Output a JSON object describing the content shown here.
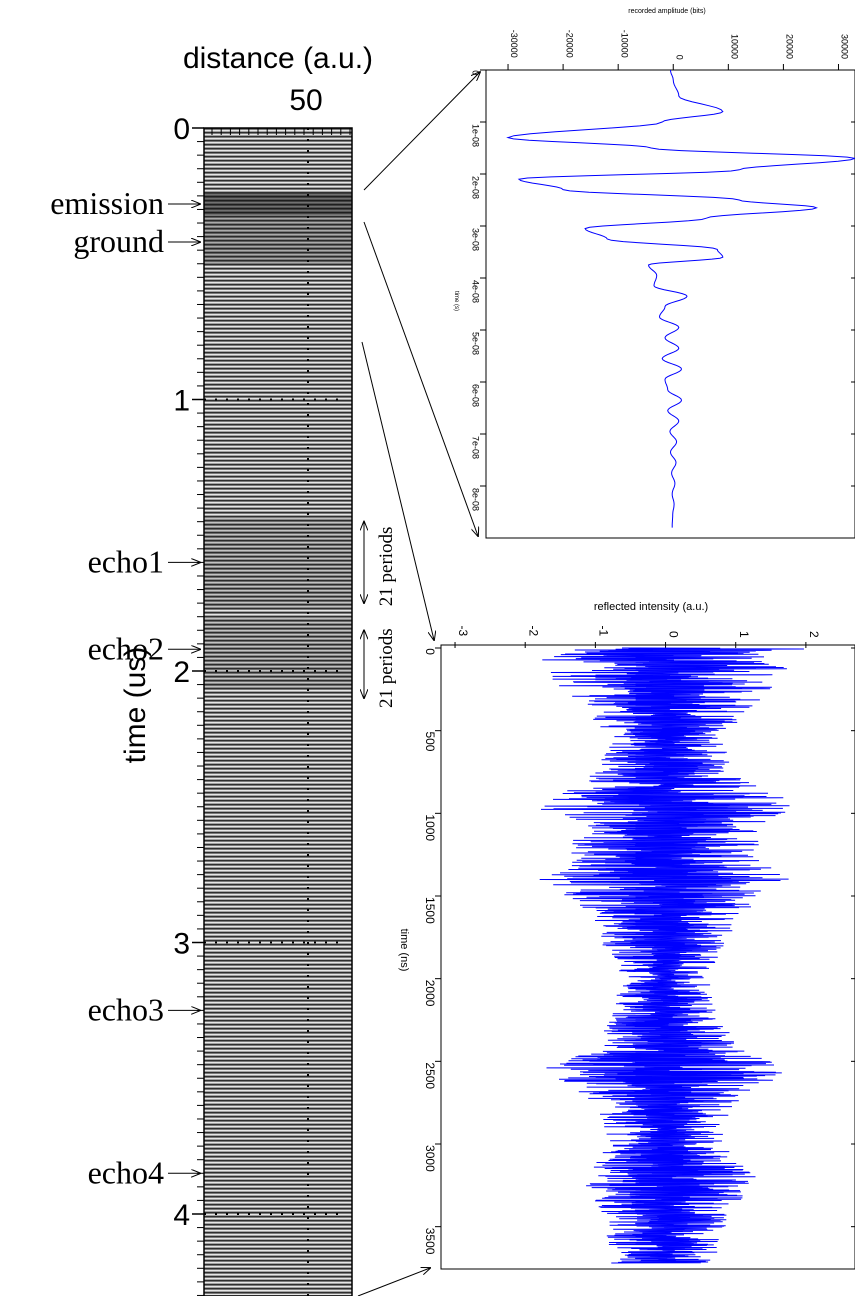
{
  "chart_data": [
    {
      "type": "heatmap",
      "xlabel": "distance (a.u.)",
      "ylabel": "time (us)",
      "x_ticks": [
        "50"
      ],
      "y_ticks": [
        "0",
        "1",
        "2",
        "3",
        "4"
      ],
      "y_range": [
        0,
        4.4
      ],
      "grid": "dotted",
      "annotations": [
        {
          "label": "emission",
          "time": 0.28
        },
        {
          "label": "ground",
          "time": 0.42
        },
        {
          "label": "echo1",
          "time": 1.6
        },
        {
          "label": "echo2",
          "time": 1.92
        },
        {
          "label": "echo3",
          "time": 3.25
        },
        {
          "label": "echo4",
          "time": 3.85
        }
      ],
      "interval_labels": [
        {
          "label": "21 periods",
          "from": 1.45,
          "to": 1.75
        },
        {
          "label": "21 periods",
          "from": 1.85,
          "to": 2.1
        }
      ]
    },
    {
      "type": "line",
      "xlabel": "time (s)",
      "ylabel": "recorded amplitude (bits)",
      "x_ticks": [
        "0",
        "1e-08",
        "2e-08",
        "3e-08",
        "4e-08",
        "5e-08",
        "6e-08",
        "7e-08",
        "8e-08"
      ],
      "y_ticks": [
        "-30000",
        "-20000",
        "-10000",
        "0",
        "10000",
        "20000",
        "30000"
      ],
      "xlim": [
        0,
        9e-08
      ],
      "ylim": [
        -34000,
        33000
      ],
      "series": [
        {
          "color": "#0000ff",
          "x": [
            0,
            2e-09,
            5e-09,
            8e-09,
            1e-08,
            1.3e-08,
            1.5e-08,
            1.7e-08,
            1.92e-08,
            2.1e-08,
            2.3e-08,
            2.5e-08,
            2.65e-08,
            2.85e-08,
            3.05e-08,
            3.25e-08,
            3.45e-08,
            3.6e-08,
            3.75e-08,
            3.95e-08,
            4.15e-08,
            4.35e-08,
            4.55e-08,
            4.75e-08,
            4.95e-08,
            5.15e-08,
            5.35e-08,
            5.55e-08,
            5.75e-08,
            5.95e-08,
            6.15e-08,
            6.35e-08,
            6.55e-08,
            6.75e-08,
            6.95e-08,
            7.15e-08,
            7.35e-08,
            7.55e-08,
            7.75e-08,
            7.95e-08,
            8.15e-08,
            8.35e-08,
            8.55e-08,
            8.8e-08
          ],
          "values": [
            -500,
            0,
            1000,
            9000,
            -2000,
            -30000,
            -4000,
            33000,
            12000,
            -28000,
            -20000,
            12000,
            26000,
            6000,
            -16000,
            -12000,
            8000,
            9000,
            -4500,
            -3000,
            -3500,
            2500,
            -1500,
            -2500,
            1000,
            -1500,
            1000,
            -2000,
            1500,
            -1500,
            -1000,
            1500,
            -1000,
            1000,
            -600,
            600,
            -500,
            500,
            -300,
            300,
            -200,
            150,
            -100,
            -200
          ]
        }
      ]
    },
    {
      "type": "line",
      "xlabel": "time (ns)",
      "ylabel": "reflected intensity (a.u.)",
      "x_ticks": [
        "0",
        "500",
        "1000",
        "1500",
        "2000",
        "2500",
        "3000",
        "3500"
      ],
      "y_ticks": [
        "-3",
        "-2",
        "-1",
        "0",
        "1",
        "2"
      ],
      "xlim": [
        0,
        3750
      ],
      "ylim": [
        -3.2,
        2.7
      ],
      "envelope": {
        "x": [
          0,
          300,
          550,
          750,
          950,
          1100,
          1250,
          1400,
          1600,
          1800,
          2000,
          2200,
          2400,
          2550,
          2750,
          3000,
          3200,
          3450,
          3700
        ],
        "amplitude": [
          2.0,
          1.4,
          0.8,
          1.0,
          1.9,
          1.3,
          1.4,
          1.8,
          1.1,
          0.9,
          0.6,
          0.8,
          1.0,
          1.8,
          1.0,
          0.8,
          1.3,
          0.9,
          0.8
        ]
      },
      "series": [
        {
          "color": "#0000ff",
          "note": "dense oscillating noise trace"
        }
      ]
    }
  ]
}
